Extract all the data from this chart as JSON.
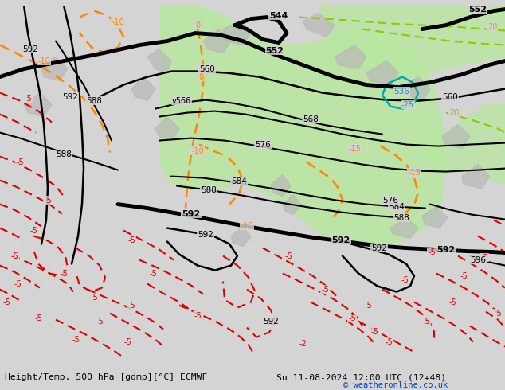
{
  "title_left": "Height/Temp. 500 hPa [gdmp][°C] ECMWF",
  "title_right": "Su 11-08-2024 12:00 UTC (12+48)",
  "copyright": "© weatheronline.co.uk",
  "bg_color": "#d4d4d4",
  "green_fill": "#b8e8a0",
  "gray_terrain": "#b8b8b8",
  "fig_width": 6.34,
  "fig_height": 4.9,
  "dpi": 100,
  "copyright_color": "#0044cc"
}
